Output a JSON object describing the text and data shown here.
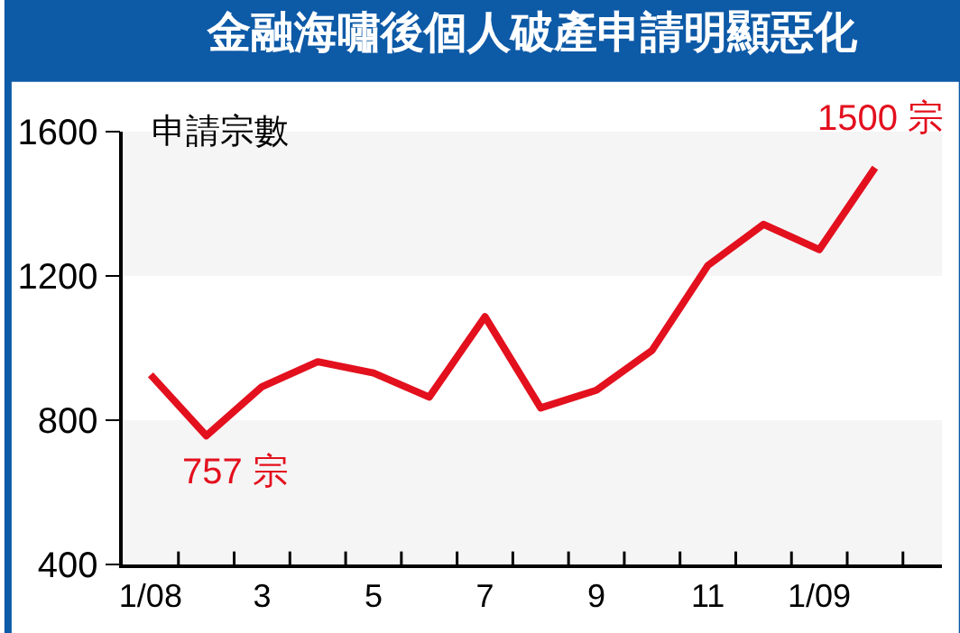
{
  "chart_data": {
    "type": "line",
    "title": "金融海嘯後個人破產申請明顯惡化",
    "ylabel": "申請宗數",
    "categories": [
      "1/08",
      null,
      "3",
      null,
      "5",
      null,
      "7",
      null,
      "9",
      null,
      "11",
      null,
      "1/09",
      null
    ],
    "series": [
      {
        "color": "#e3101e",
        "values": [
          926,
          757,
          893,
          962,
          931,
          864,
          1087,
          834,
          883,
          994,
          1229,
          1343,
          1273,
          1500
        ]
      }
    ],
    "ylim": [
      400,
      1600
    ],
    "yticks": [
      400,
      800,
      1200,
      1600
    ],
    "bands": [
      {
        "axis": "y",
        "from": 1200,
        "to": 1600,
        "color": "#f5f5f5"
      },
      {
        "axis": "y",
        "from": 400,
        "to": 800,
        "color": "#f5f5f5"
      }
    ],
    "annotations": [
      "757 宗",
      "1500 宗"
    ],
    "grid": false,
    "legend": false,
    "marker": "none",
    "line_style": "solid"
  }
}
